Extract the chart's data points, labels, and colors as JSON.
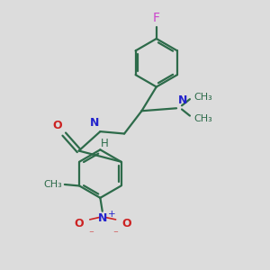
{
  "background_color": "#dcdcdc",
  "bond_color": "#2d6b4a",
  "N_color": "#2222cc",
  "O_color": "#cc2222",
  "F_color": "#cc44cc",
  "figsize": [
    3.0,
    3.0
  ],
  "dpi": 100,
  "xlim": [
    0,
    10
  ],
  "ylim": [
    0,
    10
  ]
}
